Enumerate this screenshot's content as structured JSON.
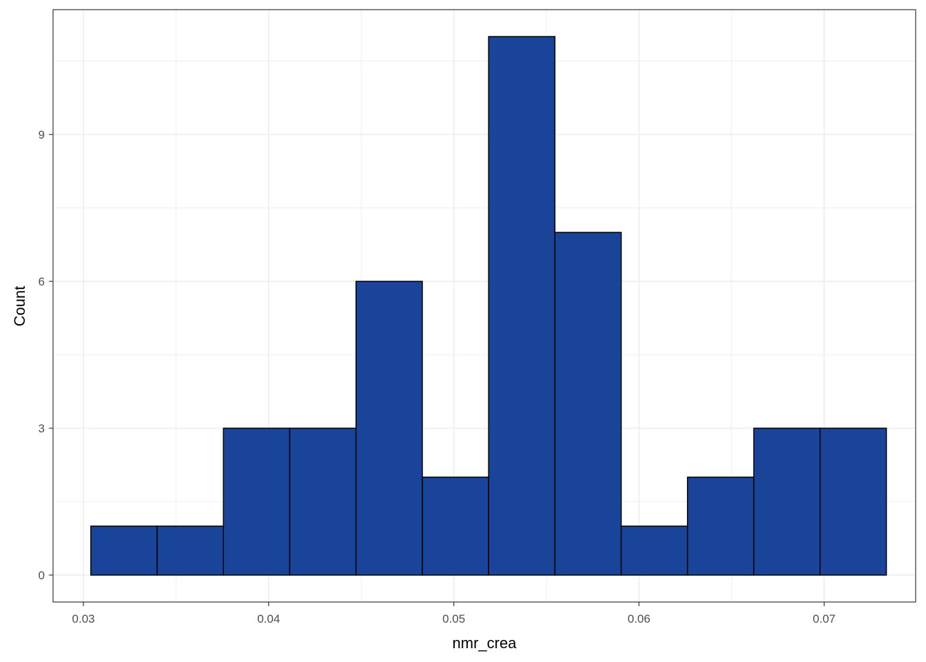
{
  "chart_data": {
    "type": "bar",
    "subtype": "histogram",
    "title": "",
    "xlabel": "nmr_crea",
    "ylabel": "Count",
    "xlim": [
      0.02836,
      0.07494
    ],
    "ylim": [
      -0.55,
      11.55
    ],
    "x_ticks": [
      0.03,
      0.04,
      0.05,
      0.06,
      0.07
    ],
    "x_tick_labels": [
      "0.03",
      "0.04",
      "0.05",
      "0.06",
      "0.07"
    ],
    "y_ticks": [
      0,
      3,
      6,
      9
    ],
    "y_tick_labels": [
      "0",
      "3",
      "6",
      "9"
    ],
    "x_minor_ticks": [
      0.035,
      0.045,
      0.055,
      0.065
    ],
    "y_minor_ticks": [
      1.5,
      4.5,
      7.5,
      10.5
    ],
    "grid": true,
    "bin_edges": [
      0.0304,
      0.03398,
      0.03756,
      0.04114,
      0.04472,
      0.0483,
      0.05188,
      0.05546,
      0.05904,
      0.06262,
      0.0662,
      0.06978,
      0.07336
    ],
    "counts": [
      1,
      1,
      3,
      3,
      6,
      2,
      11,
      7,
      1,
      2,
      3,
      3
    ],
    "colors": {
      "fill": "#1a4499",
      "outline": "#000000",
      "grid": "#ebebeb",
      "panel_border": "#333333"
    }
  }
}
